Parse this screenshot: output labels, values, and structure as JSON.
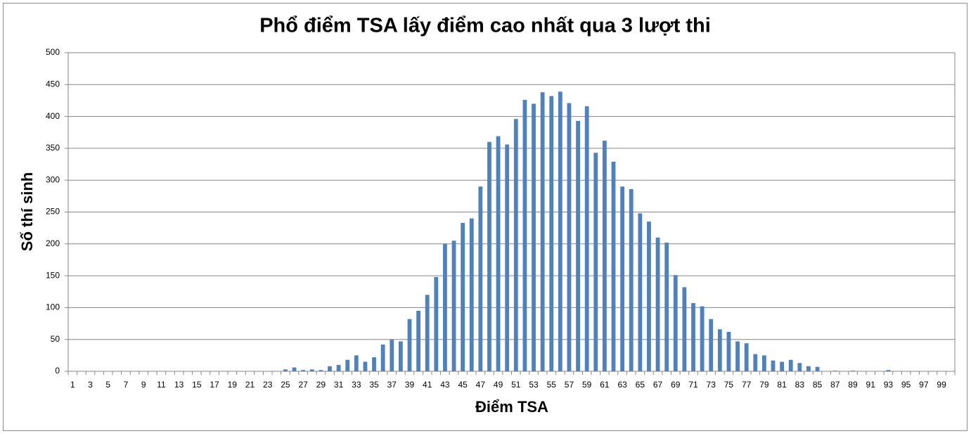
{
  "chart_data": {
    "type": "bar",
    "title": "Phổ điểm TSA lấy điểm cao nhất qua 3 lượt thi",
    "x_label": "Điểm TSA",
    "y_label": "Số thí sinh",
    "color": "#4f81bd",
    "grid": true,
    "ylim": [
      0,
      500
    ],
    "yticks": [
      0,
      50,
      100,
      150,
      200,
      250,
      300,
      350,
      400,
      450,
      500
    ],
    "categories": [
      "1",
      null,
      "3",
      null,
      "5",
      null,
      "7",
      null,
      "9",
      null,
      "11",
      null,
      "13",
      null,
      "15",
      null,
      "17",
      null,
      "19",
      null,
      "21",
      null,
      "23",
      null,
      "25",
      null,
      "27",
      null,
      "29",
      null,
      "31",
      null,
      "33",
      null,
      "35",
      null,
      "37",
      null,
      "39",
      null,
      "41",
      null,
      "43",
      null,
      "45",
      null,
      "47",
      null,
      "49",
      null,
      "51",
      null,
      "53",
      null,
      "55",
      null,
      "57",
      null,
      "59",
      null,
      "61",
      null,
      "63",
      null,
      "65",
      null,
      "67",
      null,
      "69",
      null,
      "71",
      null,
      "73",
      null,
      "75",
      null,
      "77",
      null,
      "79",
      null,
      "81",
      null,
      "83",
      null,
      "85",
      null,
      "87",
      null,
      "89",
      null,
      "91",
      null,
      "93",
      null,
      "95",
      null,
      "97",
      null,
      "99",
      null
    ],
    "values": [
      0,
      0,
      0,
      0,
      0,
      0,
      0,
      0,
      0,
      0,
      0,
      0,
      0,
      0,
      0,
      0,
      0,
      0,
      0,
      0,
      0,
      0,
      0,
      0,
      3,
      6,
      2,
      3,
      2,
      8,
      10,
      18,
      25,
      15,
      22,
      42,
      50,
      47,
      82,
      95,
      120,
      148,
      200,
      205,
      233,
      240,
      290,
      360,
      369,
      356,
      396,
      426,
      420,
      438,
      432,
      439,
      421,
      393,
      416,
      343,
      362,
      329,
      290,
      286,
      248,
      235,
      210,
      202,
      151,
      132,
      107,
      102,
      82,
      66,
      62,
      47,
      44,
      27,
      25,
      17,
      15,
      18,
      13,
      8,
      7,
      0,
      1,
      0,
      1,
      0,
      0,
      0,
      2,
      0,
      0,
      0,
      0,
      0,
      0,
      0
    ]
  }
}
